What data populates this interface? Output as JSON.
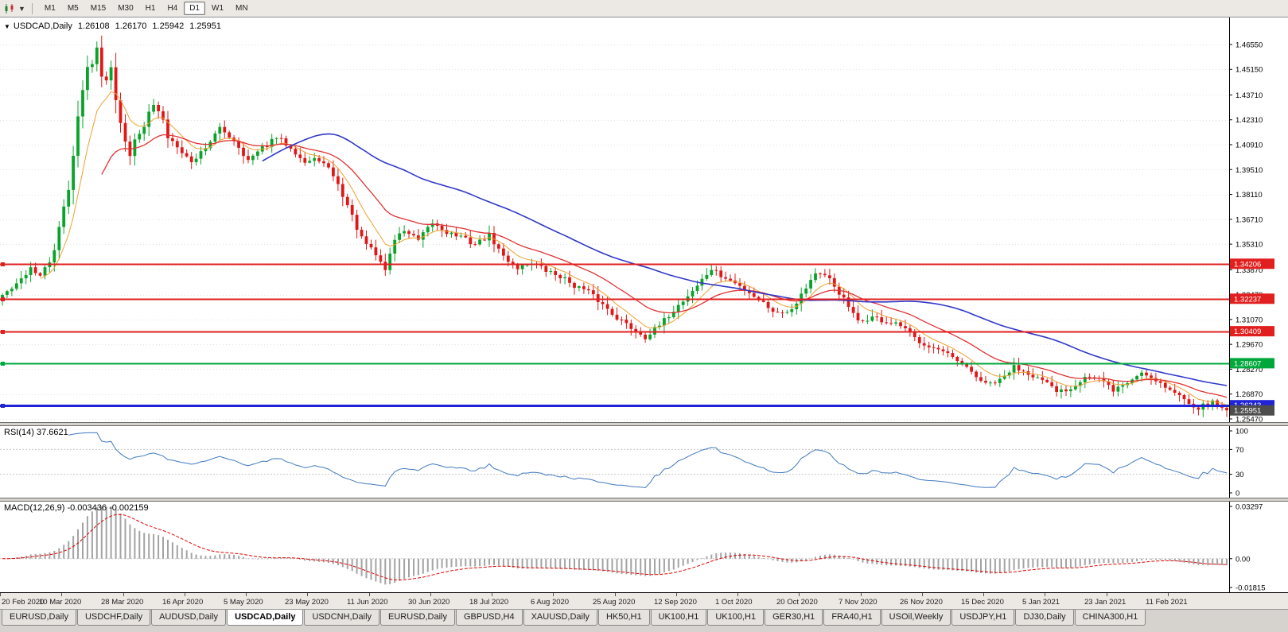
{
  "toolbar": {
    "timeframes": [
      {
        "label": "M1",
        "active": false
      },
      {
        "label": "M5",
        "active": false
      },
      {
        "label": "M15",
        "active": false
      },
      {
        "label": "M30",
        "active": false
      },
      {
        "label": "H1",
        "active": false
      },
      {
        "label": "H4",
        "active": false
      },
      {
        "label": "D1",
        "active": true
      },
      {
        "label": "W1",
        "active": false
      },
      {
        "label": "MN",
        "active": false
      }
    ]
  },
  "chart": {
    "collapse_glyph": "▼",
    "symbol": "USDCAD,Daily",
    "open": "1.26108",
    "high": "1.26170",
    "low": "1.25942",
    "close": "1.25951"
  },
  "price_axis": {
    "ticks": [
      "1.46550",
      "1.45150",
      "1.43710",
      "1.42310",
      "1.40910",
      "1.39510",
      "1.38110",
      "1.36710",
      "1.35310",
      "1.33870",
      "1.32470",
      "1.31070",
      "1.29670",
      "1.28270",
      "1.26870",
      "1.25470"
    ]
  },
  "hlines": [
    {
      "label": "1.34206",
      "price": 1.34206,
      "color": "#e21f1f",
      "width": 2
    },
    {
      "label": "1.32237",
      "price": 1.32237,
      "color": "#e21f1f",
      "width": 2
    },
    {
      "label": "1.30409",
      "price": 1.30409,
      "color": "#e21f1f",
      "width": 2
    },
    {
      "label": "1.28607",
      "price": 1.28607,
      "color": "#00a83c",
      "width": 2
    },
    {
      "label": "1.26243",
      "price": 1.26243,
      "color": "#2023d6",
      "width": 3
    }
  ],
  "current_price": {
    "label": "1.25951",
    "price": 1.25951,
    "color": "#4d4d4d"
  },
  "rsi": {
    "label": "RSI(14) 37.6621",
    "axis": [
      100,
      70,
      30,
      0
    ],
    "levels": [
      70,
      30
    ],
    "line_color": "#4079c0"
  },
  "macd": {
    "label": "MACD(12,26,9) -0.003436 -0.002159",
    "axis": [
      {
        "text": "0.03297",
        "value": 0.03297
      },
      {
        "text": "0.00",
        "value": 0
      },
      {
        "text": "-0.01815",
        "value": -0.01815
      }
    ]
  },
  "tabs": [
    {
      "label": "EURUSD,Daily",
      "active": false
    },
    {
      "label": "USDCHF,Daily",
      "active": false
    },
    {
      "label": "AUDUSD,Daily",
      "active": false
    },
    {
      "label": "USDCAD,Daily",
      "active": true
    },
    {
      "label": "USDCNH,Daily",
      "active": false
    },
    {
      "label": "EURUSD,Daily",
      "active": false
    },
    {
      "label": "GBPUSD,H4",
      "active": false
    },
    {
      "label": "XAUUSD,Daily",
      "active": false
    },
    {
      "label": "HK50,H1",
      "active": false
    },
    {
      "label": "UK100,H1",
      "active": false
    },
    {
      "label": "UK100,H1",
      "active": false
    },
    {
      "label": "GER30,H1",
      "active": false
    },
    {
      "label": "FRA40,H1",
      "active": false
    },
    {
      "label": "USOil,Weekly",
      "active": false
    },
    {
      "label": "USDJPY,H1",
      "active": false
    },
    {
      "label": "DJ30,Daily",
      "active": false
    },
    {
      "label": "CHINA300,H1",
      "active": false
    }
  ],
  "colors": {
    "bull": "#0aa32a",
    "bear": "#e01717",
    "grid": "#e2e2e2",
    "hist": "#a3a3a3",
    "signal": "#e00000"
  },
  "chart_data": {
    "type": "candlestick",
    "symbol": "USDCAD",
    "timeframe": "Daily",
    "bars": 260,
    "bars_per_label": 13,
    "ylim": [
      1.2529,
      1.4807
    ],
    "macd_ylim": [
      -0.01815,
      0.03297
    ],
    "seed": 42,
    "noise": 0.003,
    "wick": 0.0035,
    "hi_vol": [
      10,
      36
    ],
    "hi_vol_mult": 2.4,
    "first_open": 1.322,
    "last_close": 1.25951,
    "x_labels": [
      "20 Feb 2020",
      "10 Mar 2020",
      "28 Mar 2020",
      "16 Apr 2020",
      "5 May 2020",
      "23 May 2020",
      "11 Jun 2020",
      "30 Jun 2020",
      "18 Jul 2020",
      "6 Aug 2020",
      "25 Aug 2020",
      "12 Sep 2020",
      "1 Oct 2020",
      "20 Oct 2020",
      "7 Nov 2020",
      "26 Nov 2020",
      "15 Dec 2020",
      "5 Jan 2021",
      "23 Jan 2021",
      "11 Feb 2021"
    ],
    "close_path": [
      [
        0,
        1.3245
      ],
      [
        3,
        1.33
      ],
      [
        6,
        1.34
      ],
      [
        8,
        1.335
      ],
      [
        10,
        1.343
      ],
      [
        12,
        1.36
      ],
      [
        14,
        1.385
      ],
      [
        16,
        1.425
      ],
      [
        18,
        1.452
      ],
      [
        20,
        1.464
      ],
      [
        21,
        1.445
      ],
      [
        23,
        1.452
      ],
      [
        25,
        1.423
      ],
      [
        27,
        1.405
      ],
      [
        29,
        1.415
      ],
      [
        31,
        1.43
      ],
      [
        33,
        1.428
      ],
      [
        35,
        1.414
      ],
      [
        37,
        1.409
      ],
      [
        40,
        1.399
      ],
      [
        43,
        1.408
      ],
      [
        46,
        1.418
      ],
      [
        49,
        1.412
      ],
      [
        52,
        1.4
      ],
      [
        55,
        1.407
      ],
      [
        58,
        1.413
      ],
      [
        61,
        1.408
      ],
      [
        64,
        1.399
      ],
      [
        67,
        1.401
      ],
      [
        70,
        1.392
      ],
      [
        73,
        1.375
      ],
      [
        76,
        1.356
      ],
      [
        79,
        1.347
      ],
      [
        81,
        1.339
      ],
      [
        83,
        1.356
      ],
      [
        85,
        1.361
      ],
      [
        88,
        1.355
      ],
      [
        91,
        1.365
      ],
      [
        94,
        1.36
      ],
      [
        97,
        1.357
      ],
      [
        100,
        1.353
      ],
      [
        103,
        1.358
      ],
      [
        106,
        1.346
      ],
      [
        109,
        1.34
      ],
      [
        112,
        1.343
      ],
      [
        115,
        1.338
      ],
      [
        118,
        1.335
      ],
      [
        121,
        1.33
      ],
      [
        124,
        1.326
      ],
      [
        127,
        1.319
      ],
      [
        130,
        1.312
      ],
      [
        133,
        1.306
      ],
      [
        136,
        1.301
      ],
      [
        139,
        1.307
      ],
      [
        142,
        1.316
      ],
      [
        145,
        1.324
      ],
      [
        148,
        1.333
      ],
      [
        150,
        1.339
      ],
      [
        152,
        1.335
      ],
      [
        155,
        1.331
      ],
      [
        158,
        1.326
      ],
      [
        161,
        1.32
      ],
      [
        164,
        1.314
      ],
      [
        167,
        1.317
      ],
      [
        170,
        1.329
      ],
      [
        172,
        1.337
      ],
      [
        175,
        1.333
      ],
      [
        178,
        1.322
      ],
      [
        181,
        1.309
      ],
      [
        184,
        1.312
      ],
      [
        187,
        1.309
      ],
      [
        190,
        1.307
      ],
      [
        193,
        1.3
      ],
      [
        196,
        1.296
      ],
      [
        199,
        1.292
      ],
      [
        202,
        1.287
      ],
      [
        205,
        1.281
      ],
      [
        208,
        1.274
      ],
      [
        211,
        1.276
      ],
      [
        214,
        1.284
      ],
      [
        217,
        1.281
      ],
      [
        220,
        1.276
      ],
      [
        223,
        1.27
      ],
      [
        226,
        1.272
      ],
      [
        229,
        1.279
      ],
      [
        232,
        1.277
      ],
      [
        235,
        1.271
      ],
      [
        238,
        1.275
      ],
      [
        241,
        1.281
      ],
      [
        244,
        1.277
      ],
      [
        247,
        1.271
      ],
      [
        250,
        1.266
      ],
      [
        253,
        1.261
      ],
      [
        256,
        1.264
      ],
      [
        259,
        1.2595
      ]
    ],
    "ma": [
      {
        "period": 8,
        "type": "ema",
        "color": "#f0a030",
        "width": 1
      },
      {
        "period": 21,
        "type": "ema",
        "color": "#e03232",
        "width": 1.3
      },
      {
        "period": 55,
        "type": "sma",
        "color": "#3038c8",
        "width": 1.6
      }
    ],
    "indicators": {
      "rsi_period": 14,
      "macd": [
        12,
        26,
        9
      ]
    }
  }
}
